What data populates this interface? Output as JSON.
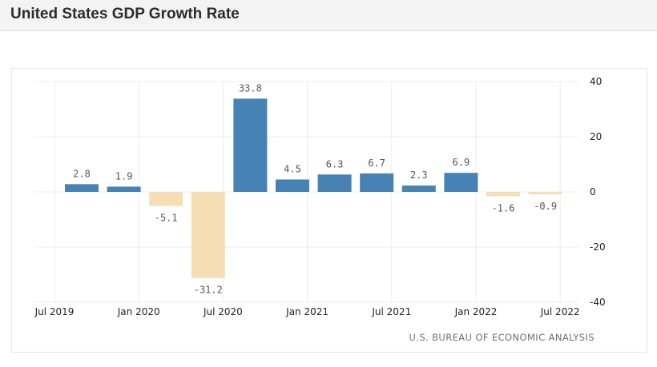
{
  "header": {
    "title": "United States GDP Growth Rate"
  },
  "source": "U.S. BUREAU OF ECONOMIC ANALYSIS",
  "colors": {
    "positive": "#4682b4",
    "negative": "#f5deb3",
    "grid": "#ececec",
    "header_bg": "#f3f3f3"
  },
  "chart_data": {
    "type": "bar",
    "categories": [
      "Q3 2019",
      "Q4 2019",
      "Q1 2020",
      "Q2 2020",
      "Q3 2020",
      "Q4 2020",
      "Q1 2021",
      "Q2 2021",
      "Q3 2021",
      "Q4 2021",
      "Q1 2022",
      "Q2 2022"
    ],
    "values": [
      2.8,
      1.9,
      -5.1,
      -31.2,
      33.8,
      4.5,
      6.3,
      6.7,
      2.3,
      6.9,
      -1.6,
      -0.9
    ],
    "value_labels": [
      "2.8",
      "1.9",
      "-5.1",
      "-31.2",
      "33.8",
      "4.5",
      "6.3",
      "6.7",
      "2.3",
      "6.9",
      "-1.6",
      "-0.9"
    ],
    "x_tick_labels": [
      "Jul 2019",
      "Jan 2020",
      "Jul 2020",
      "Jan 2021",
      "Jul 2021",
      "Jan 2022",
      "Jul 2022"
    ],
    "y_ticks": [
      40,
      20,
      0,
      -20,
      -40
    ],
    "ylim": [
      -40,
      40
    ],
    "y_axis_side": "right",
    "grid": true,
    "title": "United States GDP Growth Rate",
    "xlabel": "",
    "ylabel": ""
  }
}
